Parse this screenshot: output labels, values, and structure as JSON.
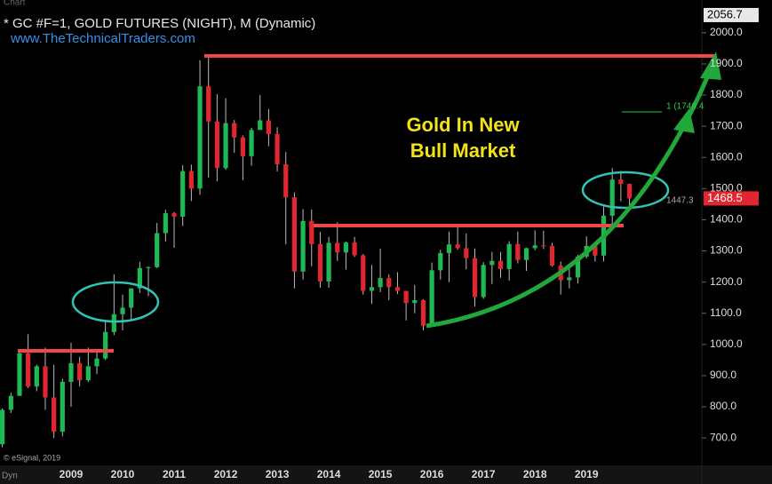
{
  "chart_data": {
    "type": "candlestick",
    "title": "* GC #F=1, GOLD FUTURES (NIGHT), M (Dynamic)",
    "subtitle": "www.TheTechnicalTraders.com",
    "annotation": [
      "Gold In New",
      "Bull Market"
    ],
    "top_price": 2056.7,
    "level_label": 1447.3,
    "fib_label": "1 (1746.4",
    "credit": "© eSignal, 2019",
    "corner_label": "Dyn",
    "toolbar_label": "Chart",
    "up_color": "#1db954",
    "down_color": "#e2262f",
    "categories": [
      null,
      null,
      null,
      null,
      null,
      null,
      null,
      null,
      "2009",
      null,
      null,
      null,
      null,
      null,
      "2010",
      null,
      null,
      null,
      null,
      null,
      "2011",
      null,
      null,
      null,
      null,
      null,
      "2012",
      null,
      null,
      null,
      null,
      null,
      "2013",
      null,
      null,
      null,
      null,
      null,
      "2014",
      null,
      null,
      null,
      null,
      null,
      "2015",
      null,
      null,
      null,
      null,
      null,
      "2016",
      null,
      null,
      null,
      null,
      null,
      "2017",
      null,
      null,
      null,
      null,
      null,
      "2018",
      null,
      null,
      null,
      null,
      null,
      "2019",
      null,
      null,
      null,
      null,
      null
    ],
    "open": [
      680,
      790,
      835,
      972,
      865,
      930,
      830,
      720,
      880,
      940,
      885,
      930,
      955,
      1040,
      1097,
      1118,
      1180,
      1245,
      1248,
      1357,
      1421,
      1410,
      1556,
      1500,
      1828,
      1715,
      1566,
      1710,
      1664,
      1604,
      1688,
      1719,
      1675,
      1578,
      1472,
      1234,
      1396,
      1322,
      1202,
      1326,
      1295,
      1327,
      1286,
      1172,
      1184,
      1213,
      1184,
      1172,
      1133,
      1142,
      1060,
      1238,
      1293,
      1321,
      1309,
      1277,
      1152,
      1255,
      1268,
      1242,
      1322,
      1271,
      1309,
      1318,
      1316,
      1253,
      1206,
      1215,
      1282,
      1316,
      1285,
      1413,
      1529,
      1515
    ],
    "high": [
      795,
      845,
      975,
      1033,
      935,
      990,
      935,
      890,
      1005,
      960,
      990,
      975,
      1075,
      1225,
      1160,
      1180,
      1265,
      1250,
      1390,
      1432,
      1425,
      1575,
      1577,
      1912,
      1920,
      1803,
      1790,
      1720,
      1670,
      1695,
      1800,
      1755,
      1697,
      1617,
      1488,
      1434,
      1433,
      1361,
      1345,
      1392,
      1330,
      1345,
      1290,
      1255,
      1307,
      1225,
      1232,
      1170,
      1191,
      1145,
      1263,
      1304,
      1362,
      1377,
      1356,
      1308,
      1264,
      1297,
      1297,
      1331,
      1362,
      1310,
      1366,
      1365,
      1326,
      1266,
      1243,
      1287,
      1347,
      1326,
      1442,
      1566,
      1557,
      1516
    ],
    "low": [
      670,
      780,
      840,
      860,
      850,
      790,
      700,
      705,
      800,
      865,
      880,
      905,
      950,
      1030,
      1045,
      1080,
      1165,
      1155,
      1245,
      1330,
      1310,
      1380,
      1460,
      1480,
      1535,
      1523,
      1560,
      1615,
      1527,
      1573,
      1690,
      1636,
      1555,
      1321,
      1180,
      1208,
      1251,
      1182,
      1182,
      1268,
      1240,
      1281,
      1160,
      1130,
      1168,
      1142,
      1162,
      1077,
      1100,
      1045,
      1071,
      1208,
      1200,
      1304,
      1241,
      1122,
      1146,
      1194,
      1214,
      1205,
      1260,
      1236,
      1302,
      1306,
      1250,
      1160,
      1180,
      1196,
      1276,
      1266,
      1266,
      1381,
      1459,
      1445
    ],
    "close": [
      790,
      835,
      972,
      865,
      930,
      830,
      720,
      880,
      940,
      885,
      930,
      955,
      1040,
      1097,
      1118,
      1180,
      1245,
      1248,
      1357,
      1421,
      1410,
      1556,
      1500,
      1828,
      1715,
      1566,
      1710,
      1664,
      1604,
      1688,
      1719,
      1675,
      1578,
      1472,
      1234,
      1396,
      1322,
      1202,
      1326,
      1295,
      1327,
      1286,
      1172,
      1184,
      1213,
      1184,
      1172,
      1133,
      1142,
      1060,
      1238,
      1293,
      1321,
      1309,
      1277,
      1152,
      1255,
      1268,
      1242,
      1322,
      1271,
      1309,
      1318,
      1316,
      1253,
      1206,
      1215,
      1282,
      1316,
      1285,
      1413,
      1529,
      1515,
      1468.5
    ],
    "ylim": [
      615,
      2105
    ],
    "yticks": [
      {
        "value": 700,
        "label": "700.0"
      },
      {
        "value": 800,
        "label": "800.0"
      },
      {
        "value": 900,
        "label": "900.0"
      },
      {
        "value": 1000,
        "label": "1000.0"
      },
      {
        "value": 1100,
        "label": "1100.0"
      },
      {
        "value": 1200,
        "label": "1200.0"
      },
      {
        "value": 1300,
        "label": "1300.0"
      },
      {
        "value": 1400,
        "label": "1400.0"
      },
      {
        "value": 1500,
        "label": "1500.0"
      },
      {
        "value": 1600,
        "label": "1600.0"
      },
      {
        "value": 1700,
        "label": "1700.0"
      },
      {
        "value": 1800,
        "label": "1800.0"
      },
      {
        "value": 1900,
        "label": "1900.0"
      },
      {
        "value": 2000,
        "label": "2000.0"
      }
    ]
  }
}
